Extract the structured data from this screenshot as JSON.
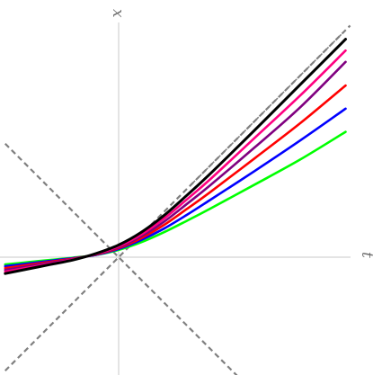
{
  "chart_data": {
    "type": "line",
    "title": "",
    "xlabel": "t",
    "ylabel": "x",
    "xlim": [
      -2.5,
      5.1
    ],
    "ylim": [
      -2.5,
      5.1
    ],
    "grid": false,
    "legend": "none",
    "asymptotes": [
      {
        "slope": 1,
        "intercept": 0,
        "color": "#808080",
        "dash": true
      },
      {
        "slope": -1,
        "intercept": 0,
        "color": "#808080",
        "dash": true
      }
    ],
    "series": [
      {
        "color": "#000000",
        "x": [
          -2.5,
          -2,
          -1.5,
          -1,
          -0.5,
          0,
          0.5,
          1,
          1.5,
          2,
          3,
          4,
          5
        ],
        "y": [
          -0.36,
          -0.26,
          -0.16,
          -0.06,
          0.08,
          0.27,
          0.55,
          0.92,
          1.36,
          1.82,
          2.8,
          3.8,
          4.8
        ]
      },
      {
        "color": "#ff0080",
        "x": [
          -2.5,
          -2,
          -1.5,
          -1,
          -0.5,
          0,
          0.5,
          1,
          1.5,
          2,
          3,
          4,
          5
        ],
        "y": [
          -0.32,
          -0.23,
          -0.14,
          -0.05,
          0.07,
          0.24,
          0.5,
          0.85,
          1.27,
          1.7,
          2.63,
          3.56,
          4.55
        ]
      },
      {
        "color": "#800080",
        "x": [
          -2.5,
          -2,
          -1.5,
          -1,
          -0.5,
          0,
          0.5,
          1,
          1.5,
          2,
          3,
          4,
          5
        ],
        "y": [
          -0.28,
          -0.2,
          -0.12,
          -0.04,
          0.07,
          0.22,
          0.46,
          0.78,
          1.17,
          1.57,
          2.42,
          3.3,
          4.3
        ]
      },
      {
        "color": "#ff0000",
        "x": [
          -2.5,
          -2,
          -1.5,
          -1,
          -0.5,
          0,
          0.5,
          1,
          1.5,
          2,
          3,
          4,
          5
        ],
        "y": [
          -0.24,
          -0.17,
          -0.1,
          -0.03,
          0.06,
          0.2,
          0.42,
          0.71,
          1.06,
          1.42,
          2.18,
          2.95,
          3.78
        ]
      },
      {
        "color": "#0000ff",
        "x": [
          -2.5,
          -2,
          -1.5,
          -1,
          -0.5,
          0,
          0.5,
          1,
          1.5,
          2,
          3,
          4,
          5
        ],
        "y": [
          -0.2,
          -0.14,
          -0.08,
          -0.02,
          0.05,
          0.18,
          0.38,
          0.63,
          0.93,
          1.25,
          1.9,
          2.57,
          3.27
        ]
      },
      {
        "color": "#00ff00",
        "x": [
          -2.5,
          -2,
          -1.5,
          -1,
          -0.5,
          0,
          0.5,
          1,
          1.5,
          2,
          3,
          4,
          5
        ],
        "y": [
          -0.16,
          -0.11,
          -0.06,
          -0.01,
          0.05,
          0.16,
          0.33,
          0.55,
          0.8,
          1.06,
          1.6,
          2.15,
          2.76
        ]
      }
    ]
  }
}
